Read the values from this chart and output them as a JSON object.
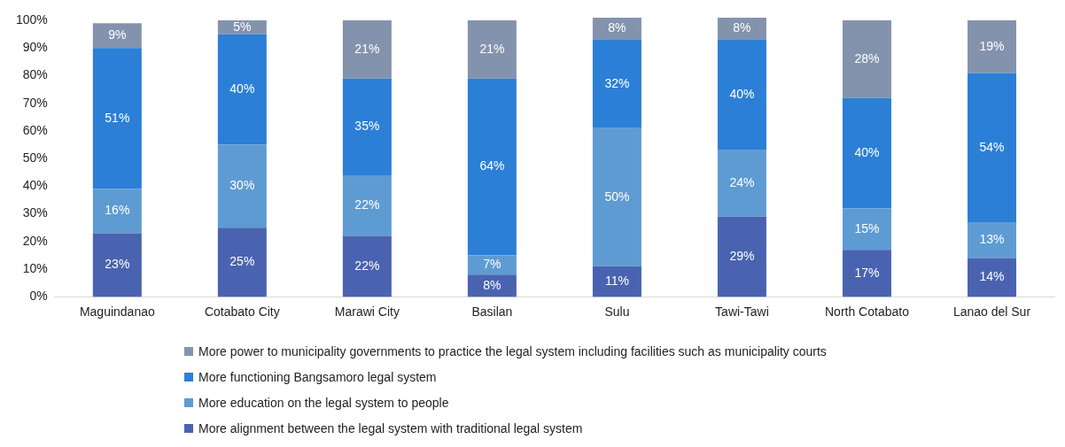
{
  "chart_data": {
    "type": "bar",
    "stacked": true,
    "categories": [
      "Maguindanao",
      "Cotabato City",
      "Marawi City",
      "Basilan",
      "Sulu",
      "Tawi-Tawi",
      "North Cotabato",
      "Lanao del Sur"
    ],
    "series": [
      {
        "name": "More alignment between the legal system with traditional legal system",
        "color": "#4a63b0",
        "values": [
          23,
          25,
          22,
          8,
          11,
          29,
          17,
          14
        ],
        "value_labels": [
          "23%",
          "25%",
          "22%",
          "8%",
          "11%",
          "29%",
          "17%",
          "14%"
        ]
      },
      {
        "name": "More education on the legal system to people",
        "color": "#5f9bd3",
        "values": [
          16,
          30,
          22,
          7,
          50,
          24,
          15,
          13
        ],
        "value_labels": [
          "16%",
          "30%",
          "22%",
          "7%",
          "50%",
          "24%",
          "15%",
          "13%"
        ]
      },
      {
        "name": "More functioning Bangsamoro legal system",
        "color": "#2b7fd6",
        "values": [
          51,
          40,
          35,
          64,
          32,
          40,
          40,
          54
        ],
        "value_labels": [
          "51%",
          "40%",
          "35%",
          "64%",
          "32%",
          "40%",
          "40%",
          "54%"
        ]
      },
      {
        "name": "More power to municipality governments to practice the legal system including facilities such as municipality courts",
        "color": "#8493ad",
        "values": [
          9,
          5,
          21,
          21,
          8,
          8,
          28,
          19
        ],
        "value_labels": [
          "9%",
          "5%",
          "21%",
          "21%",
          "8%",
          "8%",
          "28%",
          "19%"
        ]
      }
    ],
    "ylim": [
      0,
      101
    ],
    "yticks": [
      {
        "value": 0,
        "label": "0%"
      },
      {
        "value": 10,
        "label": "10%"
      },
      {
        "value": 20,
        "label": "20%"
      },
      {
        "value": 30,
        "label": "30%"
      },
      {
        "value": 40,
        "label": "40%"
      },
      {
        "value": 50,
        "label": "50%"
      },
      {
        "value": 60,
        "label": "60%"
      },
      {
        "value": 70,
        "label": "70%"
      },
      {
        "value": 80,
        "label": "80%"
      },
      {
        "value": 90,
        "label": "90%"
      },
      {
        "value": 100,
        "label": "100%"
      }
    ],
    "grid": false,
    "legend": "bottom"
  }
}
